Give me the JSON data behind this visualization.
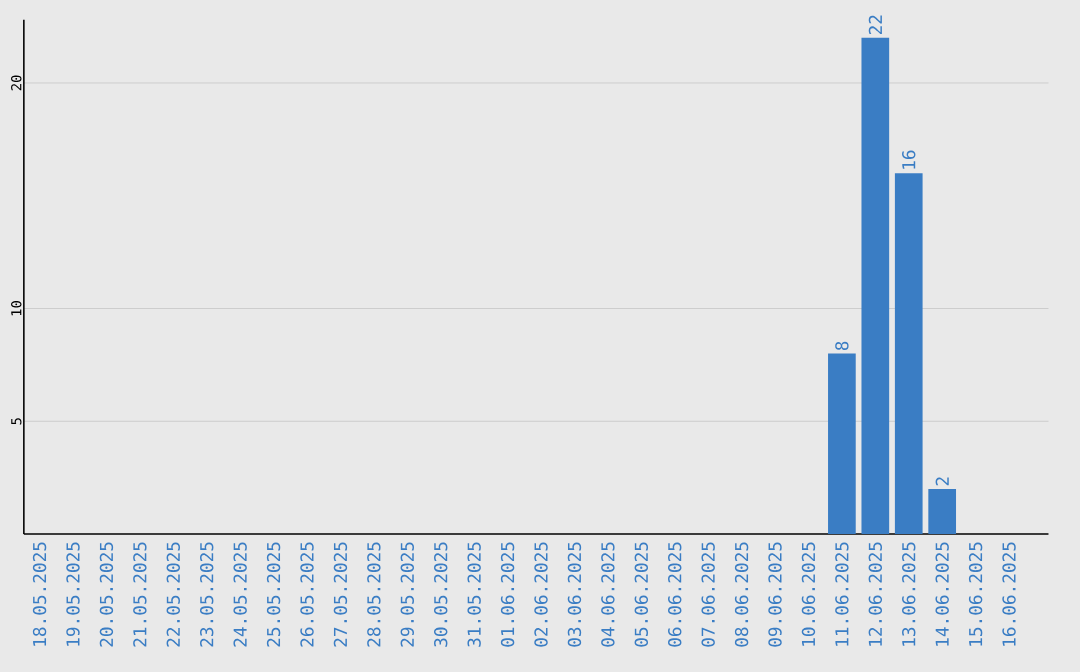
{
  "chart_data": {
    "type": "bar",
    "categories": [
      "18.05.2025",
      "19.05.2025",
      "20.05.2025",
      "21.05.2025",
      "22.05.2025",
      "23.05.2025",
      "24.05.2025",
      "25.05.2025",
      "26.05.2025",
      "27.05.2025",
      "28.05.2025",
      "29.05.2025",
      "30.05.2025",
      "31.05.2025",
      "01.06.2025",
      "02.06.2025",
      "03.06.2025",
      "04.06.2025",
      "05.06.2025",
      "06.06.2025",
      "07.06.2025",
      "08.06.2025",
      "09.06.2025",
      "10.06.2025",
      "11.06.2025",
      "12.06.2025",
      "13.06.2025",
      "14.06.2025",
      "15.06.2025",
      "16.06.2025"
    ],
    "values": [
      0,
      0,
      0,
      0,
      0,
      0,
      0,
      0,
      0,
      0,
      0,
      0,
      0,
      0,
      0,
      0,
      0,
      0,
      0,
      0,
      0,
      0,
      0,
      0,
      8,
      22,
      16,
      2,
      0,
      0
    ],
    "value_labels": [
      null,
      null,
      null,
      null,
      null,
      null,
      null,
      null,
      null,
      null,
      null,
      null,
      null,
      null,
      null,
      null,
      null,
      null,
      null,
      null,
      null,
      null,
      null,
      null,
      "8",
      "22",
      "16",
      "2",
      null,
      null
    ],
    "color": "#3a7dc4",
    "ylim": [
      0,
      22.8
    ],
    "yticks": [
      5,
      10,
      20
    ],
    "grid": "y"
  }
}
